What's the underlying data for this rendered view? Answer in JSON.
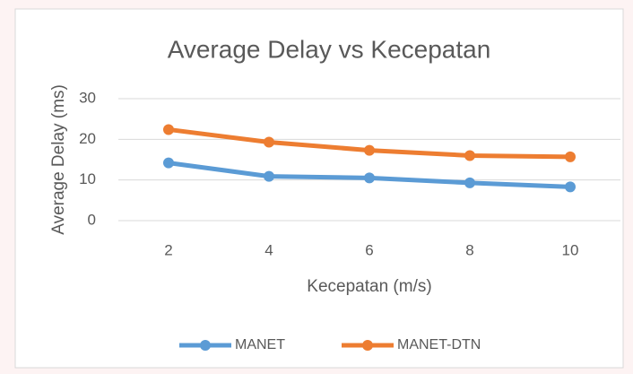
{
  "chart_data": {
    "type": "line",
    "title": "Average Delay vs Kecepatan",
    "x_label": "Kecepatan (m/s)",
    "y_label": "Average Delay (ms)",
    "categories": [
      "2",
      "4",
      "6",
      "8",
      "10"
    ],
    "series": [
      {
        "name": "MANET",
        "color": "#5b9bd5",
        "values": [
          14.2,
          10.9,
          10.5,
          9.3,
          8.3
        ]
      },
      {
        "name": "MANET-DTN",
        "color": "#ed7d31",
        "values": [
          22.4,
          19.3,
          17.3,
          16.0,
          15.7
        ]
      }
    ],
    "ylim": [
      0,
      30
    ],
    "yticks": [
      0,
      10,
      20,
      30
    ],
    "grid": true,
    "legend": "bottom"
  }
}
